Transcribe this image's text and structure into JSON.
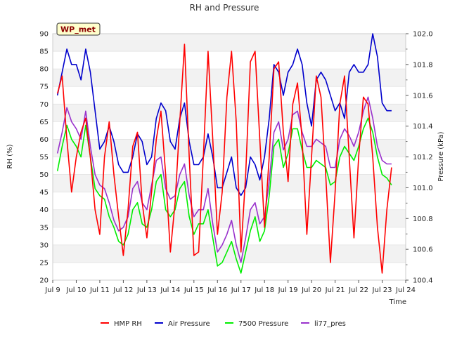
{
  "chart_data": {
    "type": "line",
    "title": "RH and Pressure",
    "xlabel": "Time",
    "ylabel_left": "RH (%)",
    "ylabel_right": "Pressure (kPa)",
    "station_badge": "WP_met",
    "xlim": [
      9,
      24
    ],
    "x_ticks": [
      {
        "v": 9,
        "label": "Jul 9"
      },
      {
        "v": 10,
        "label": "Jul 10"
      },
      {
        "v": 11,
        "label": "Jul 11"
      },
      {
        "v": 12,
        "label": "Jul 12"
      },
      {
        "v": 13,
        "label": "Jul 13"
      },
      {
        "v": 14,
        "label": "Jul 14"
      },
      {
        "v": 15,
        "label": "Jul 15"
      },
      {
        "v": 16,
        "label": "Jul 16"
      },
      {
        "v": 17,
        "label": "Jul 17"
      },
      {
        "v": 18,
        "label": "Jul 18"
      },
      {
        "v": 19,
        "label": "Jul 19"
      },
      {
        "v": 20,
        "label": "Jul 20"
      },
      {
        "v": 21,
        "label": "Jul 21"
      },
      {
        "v": 22,
        "label": "Jul 22"
      },
      {
        "v": 23,
        "label": "Jul 23"
      },
      {
        "v": 24,
        "label": "Jul 24"
      }
    ],
    "ylim_left": [
      20,
      90
    ],
    "y_ticks_left": [
      20,
      25,
      30,
      35,
      40,
      45,
      50,
      55,
      60,
      65,
      70,
      75,
      80,
      85,
      90
    ],
    "ylim_right": [
      100.4,
      102.0
    ],
    "y_ticks_right": [
      {
        "v": 100.4,
        "label": "100.4"
      },
      {
        "v": 100.6,
        "label": "100.6"
      },
      {
        "v": 100.8,
        "label": "100.8"
      },
      {
        "v": 101.0,
        "label": "101.0"
      },
      {
        "v": 101.2,
        "label": "101.2"
      },
      {
        "v": 101.4,
        "label": "101.4"
      },
      {
        "v": 101.6,
        "label": "101.6"
      },
      {
        "v": 101.8,
        "label": "101.8"
      },
      {
        "v": 102.0,
        "label": "102.0"
      }
    ],
    "grid": "horizontal bands",
    "legend_position": "bottom",
    "series": [
      {
        "name": "HMP RH",
        "axis": "left",
        "color": "#ff0000",
        "x": [
          9.2,
          9.4,
          9.6,
          9.8,
          10.0,
          10.2,
          10.4,
          10.6,
          10.8,
          11.0,
          11.2,
          11.4,
          11.6,
          11.8,
          12.0,
          12.2,
          12.4,
          12.6,
          12.8,
          13.0,
          13.2,
          13.4,
          13.6,
          13.8,
          14.0,
          14.2,
          14.4,
          14.6,
          14.8,
          15.0,
          15.2,
          15.4,
          15.6,
          15.8,
          16.0,
          16.2,
          16.4,
          16.6,
          16.8,
          17.0,
          17.2,
          17.4,
          17.6,
          17.8,
          18.0,
          18.2,
          18.4,
          18.6,
          18.8,
          19.0,
          19.2,
          19.4,
          19.6,
          19.8,
          20.0,
          20.2,
          20.4,
          20.6,
          20.8,
          21.0,
          21.2,
          21.4,
          21.6,
          21.8,
          22.0,
          22.2,
          22.4,
          22.6,
          22.8,
          23.0,
          23.2,
          23.4
        ],
        "y": [
          73,
          78,
          60,
          45,
          55,
          62,
          66,
          55,
          40,
          33,
          55,
          65,
          50,
          38,
          27,
          40,
          58,
          62,
          42,
          32,
          45,
          60,
          68,
          50,
          28,
          42,
          65,
          87,
          55,
          27,
          28,
          55,
          85,
          60,
          33,
          45,
          72,
          85,
          65,
          28,
          50,
          82,
          85,
          60,
          35,
          55,
          80,
          82,
          62,
          48,
          70,
          76,
          60,
          33,
          55,
          78,
          72,
          50,
          25,
          45,
          70,
          78,
          55,
          32,
          55,
          72,
          70,
          55,
          35,
          22,
          40,
          52
        ]
      },
      {
        "name": "Air Pressure",
        "axis": "right",
        "color": "#0000cc",
        "x": [
          9.2,
          9.4,
          9.6,
          9.8,
          10.0,
          10.2,
          10.4,
          10.6,
          10.8,
          11.0,
          11.2,
          11.4,
          11.6,
          11.8,
          12.0,
          12.2,
          12.4,
          12.6,
          12.8,
          13.0,
          13.2,
          13.4,
          13.6,
          13.8,
          14.0,
          14.2,
          14.4,
          14.6,
          14.8,
          15.0,
          15.2,
          15.4,
          15.6,
          15.8,
          16.0,
          16.2,
          16.4,
          16.6,
          16.8,
          17.0,
          17.2,
          17.4,
          17.6,
          17.8,
          18.0,
          18.2,
          18.4,
          18.6,
          18.8,
          19.0,
          19.2,
          19.4,
          19.6,
          19.8,
          20.0,
          20.2,
          20.4,
          20.6,
          20.8,
          21.0,
          21.2,
          21.4,
          21.6,
          21.8,
          22.0,
          22.2,
          22.4,
          22.6,
          22.8,
          23.0,
          23.2,
          23.4
        ],
        "y": [
          101.6,
          101.75,
          101.9,
          101.8,
          101.8,
          101.7,
          101.9,
          101.75,
          101.5,
          101.25,
          101.3,
          101.4,
          101.3,
          101.15,
          101.1,
          101.1,
          101.2,
          101.35,
          101.3,
          101.15,
          101.2,
          101.45,
          101.55,
          101.5,
          101.3,
          101.25,
          101.45,
          101.55,
          101.3,
          101.15,
          101.15,
          101.2,
          101.35,
          101.2,
          101.0,
          101.0,
          101.1,
          101.2,
          101.0,
          100.95,
          101.0,
          101.2,
          101.15,
          101.05,
          101.2,
          101.45,
          101.8,
          101.75,
          101.6,
          101.75,
          101.8,
          101.9,
          101.8,
          101.55,
          101.4,
          101.7,
          101.75,
          101.7,
          101.6,
          101.5,
          101.55,
          101.45,
          101.75,
          101.8,
          101.75,
          101.75,
          101.8,
          102.0,
          101.85,
          101.55,
          101.5,
          101.5
        ]
      },
      {
        "name": "7500 Pressure",
        "axis": "left",
        "color": "#00ee00",
        "x": [
          9.2,
          9.4,
          9.6,
          9.8,
          10.0,
          10.2,
          10.4,
          10.6,
          10.8,
          11.0,
          11.2,
          11.4,
          11.6,
          11.8,
          12.0,
          12.2,
          12.4,
          12.6,
          12.8,
          13.0,
          13.2,
          13.4,
          13.6,
          13.8,
          14.0,
          14.2,
          14.4,
          14.6,
          14.8,
          15.0,
          15.2,
          15.4,
          15.6,
          15.8,
          16.0,
          16.2,
          16.4,
          16.6,
          16.8,
          17.0,
          17.2,
          17.4,
          17.6,
          17.8,
          18.0,
          18.2,
          18.4,
          18.6,
          18.8,
          19.0,
          19.2,
          19.4,
          19.6,
          19.8,
          20.0,
          20.2,
          20.4,
          20.6,
          20.8,
          21.0,
          21.2,
          21.4,
          21.6,
          21.8,
          22.0,
          22.2,
          22.4,
          22.6,
          22.8,
          23.0,
          23.2,
          23.4
        ],
        "y": [
          51,
          58,
          64,
          60,
          58,
          55,
          64,
          55,
          46,
          44,
          43,
          38,
          35,
          31,
          30,
          33,
          40,
          42,
          36,
          35,
          40,
          48,
          50,
          40,
          38,
          40,
          46,
          48,
          38,
          33,
          36,
          36,
          40,
          32,
          24,
          25,
          28,
          31,
          26,
          22,
          28,
          34,
          38,
          31,
          34,
          44,
          58,
          60,
          52,
          56,
          63,
          63,
          57,
          52,
          52,
          54,
          53,
          52,
          47,
          48,
          55,
          58,
          56,
          54,
          58,
          63,
          66,
          62,
          55,
          50,
          49,
          47
        ]
      },
      {
        "name": "li77_pres",
        "axis": "left",
        "color": "#9932cc",
        "x": [
          9.2,
          9.4,
          9.6,
          9.8,
          10.0,
          10.2,
          10.4,
          10.6,
          10.8,
          11.0,
          11.2,
          11.4,
          11.6,
          11.8,
          12.0,
          12.2,
          12.4,
          12.6,
          12.8,
          13.0,
          13.2,
          13.4,
          13.6,
          13.8,
          14.0,
          14.2,
          14.4,
          14.6,
          14.8,
          15.0,
          15.2,
          15.4,
          15.6,
          15.8,
          16.0,
          16.2,
          16.4,
          16.6,
          16.8,
          17.0,
          17.2,
          17.4,
          17.6,
          17.8,
          18.0,
          18.2,
          18.4,
          18.6,
          18.8,
          19.0,
          19.2,
          19.4,
          19.6,
          19.8,
          20.0,
          20.2,
          20.4,
          20.6,
          20.8,
          21.0,
          21.2,
          21.4,
          21.6,
          21.8,
          22.0,
          22.2,
          22.4,
          22.6,
          22.8,
          23.0,
          23.2,
          23.4
        ],
        "y": [
          56,
          62,
          69,
          65,
          63,
          60,
          68,
          58,
          50,
          47,
          46,
          42,
          37,
          34,
          35,
          38,
          46,
          48,
          42,
          40,
          47,
          54,
          55,
          46,
          43,
          44,
          50,
          53,
          44,
          38,
          40,
          40,
          46,
          36,
          28,
          30,
          33,
          37,
          30,
          25,
          32,
          40,
          42,
          36,
          38,
          48,
          62,
          65,
          57,
          60,
          67,
          68,
          62,
          58,
          58,
          60,
          59,
          58,
          52,
          52,
          60,
          63,
          61,
          58,
          62,
          68,
          72,
          66,
          58,
          54,
          53,
          53
        ]
      }
    ]
  }
}
